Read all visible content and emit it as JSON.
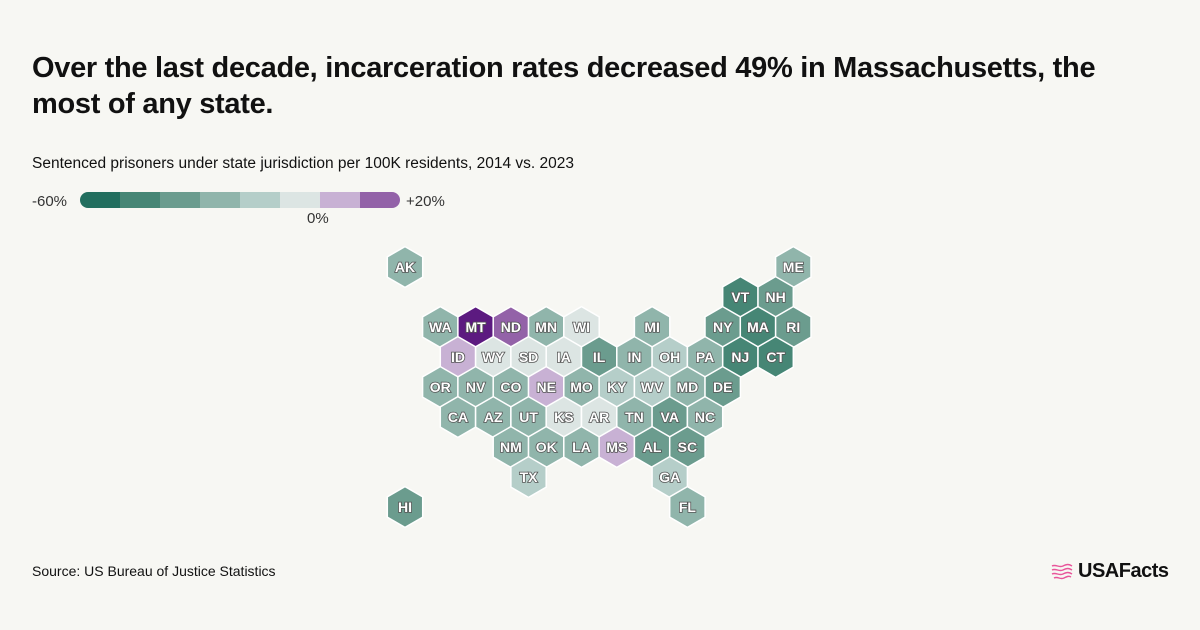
{
  "title": "Over the last decade, incarceration rates decreased 49% in Massachusetts, the most of any state.",
  "subtitle": "Sentenced prisoners under state jurisdiction per 100K residents, 2014 vs. 2023",
  "legend": {
    "min_label": "-60%",
    "max_label": "+20%",
    "zero_label": "0%",
    "colors": [
      "#226e5e",
      "#468675",
      "#6b9c8e",
      "#90b5ab",
      "#b5cec9",
      "#dce5e3",
      "#c8b1d4",
      "#9362a8"
    ]
  },
  "extra_color": "#5c1a80",
  "states": [
    {
      "abbr": "AK",
      "row": 0,
      "col": 0,
      "bin": 3
    },
    {
      "abbr": "ME",
      "row": 0,
      "col": 11,
      "bin": 3
    },
    {
      "abbr": "VT",
      "row": 1,
      "col": 9,
      "bin": 1
    },
    {
      "abbr": "NH",
      "row": 1,
      "col": 10,
      "bin": 2
    },
    {
      "abbr": "WA",
      "row": 2,
      "col": 1,
      "bin": 3
    },
    {
      "abbr": "MT",
      "row": 2,
      "col": 2,
      "bin": 8
    },
    {
      "abbr": "ND",
      "row": 2,
      "col": 3,
      "bin": 7
    },
    {
      "abbr": "MN",
      "row": 2,
      "col": 4,
      "bin": 3
    },
    {
      "abbr": "WI",
      "row": 2,
      "col": 5,
      "bin": 5
    },
    {
      "abbr": "MI",
      "row": 2,
      "col": 7,
      "bin": 3
    },
    {
      "abbr": "NY",
      "row": 2,
      "col": 9,
      "bin": 2
    },
    {
      "abbr": "MA",
      "row": 2,
      "col": 10,
      "bin": 1
    },
    {
      "abbr": "RI",
      "row": 2,
      "col": 11,
      "bin": 2
    },
    {
      "abbr": "ID",
      "row": 3,
      "col": 1,
      "bin": 6
    },
    {
      "abbr": "WY",
      "row": 3,
      "col": 2,
      "bin": 5
    },
    {
      "abbr": "SD",
      "row": 3,
      "col": 3,
      "bin": 5
    },
    {
      "abbr": "IA",
      "row": 3,
      "col": 4,
      "bin": 5
    },
    {
      "abbr": "IL",
      "row": 3,
      "col": 5,
      "bin": 2
    },
    {
      "abbr": "IN",
      "row": 3,
      "col": 6,
      "bin": 3
    },
    {
      "abbr": "OH",
      "row": 3,
      "col": 7,
      "bin": 4
    },
    {
      "abbr": "PA",
      "row": 3,
      "col": 8,
      "bin": 3
    },
    {
      "abbr": "NJ",
      "row": 3,
      "col": 9,
      "bin": 1
    },
    {
      "abbr": "CT",
      "row": 3,
      "col": 10,
      "bin": 1
    },
    {
      "abbr": "OR",
      "row": 4,
      "col": 1,
      "bin": 3
    },
    {
      "abbr": "NV",
      "row": 4,
      "col": 2,
      "bin": 3
    },
    {
      "abbr": "CO",
      "row": 4,
      "col": 3,
      "bin": 3
    },
    {
      "abbr": "NE",
      "row": 4,
      "col": 4,
      "bin": 6
    },
    {
      "abbr": "MO",
      "row": 4,
      "col": 5,
      "bin": 3
    },
    {
      "abbr": "KY",
      "row": 4,
      "col": 6,
      "bin": 4
    },
    {
      "abbr": "WV",
      "row": 4,
      "col": 7,
      "bin": 4
    },
    {
      "abbr": "MD",
      "row": 4,
      "col": 8,
      "bin": 3
    },
    {
      "abbr": "DE",
      "row": 4,
      "col": 9,
      "bin": 2
    },
    {
      "abbr": "CA",
      "row": 5,
      "col": 1,
      "bin": 3
    },
    {
      "abbr": "AZ",
      "row": 5,
      "col": 2,
      "bin": 3
    },
    {
      "abbr": "UT",
      "row": 5,
      "col": 3,
      "bin": 3
    },
    {
      "abbr": "KS",
      "row": 5,
      "col": 4,
      "bin": 5
    },
    {
      "abbr": "AR",
      "row": 5,
      "col": 5,
      "bin": 5
    },
    {
      "abbr": "TN",
      "row": 5,
      "col": 6,
      "bin": 3
    },
    {
      "abbr": "VA",
      "row": 5,
      "col": 7,
      "bin": 2
    },
    {
      "abbr": "NC",
      "row": 5,
      "col": 8,
      "bin": 3
    },
    {
      "abbr": "NM",
      "row": 6,
      "col": 3,
      "bin": 3
    },
    {
      "abbr": "OK",
      "row": 6,
      "col": 4,
      "bin": 3
    },
    {
      "abbr": "LA",
      "row": 6,
      "col": 5,
      "bin": 3
    },
    {
      "abbr": "MS",
      "row": 6,
      "col": 6,
      "bin": 6
    },
    {
      "abbr": "AL",
      "row": 6,
      "col": 7,
      "bin": 2
    },
    {
      "abbr": "SC",
      "row": 6,
      "col": 8,
      "bin": 2
    },
    {
      "abbr": "TX",
      "row": 7,
      "col": 3,
      "bin": 4
    },
    {
      "abbr": "GA",
      "row": 7,
      "col": 7,
      "bin": 4
    },
    {
      "abbr": "HI",
      "row": 8,
      "col": 0,
      "bin": 2
    },
    {
      "abbr": "FL",
      "row": 8,
      "col": 8,
      "bin": 3
    }
  ],
  "source": "Source: US Bureau of Justice Statistics",
  "logo": {
    "text": "USAFacts",
    "icon": "flag-icon",
    "color": "#e8559a"
  }
}
